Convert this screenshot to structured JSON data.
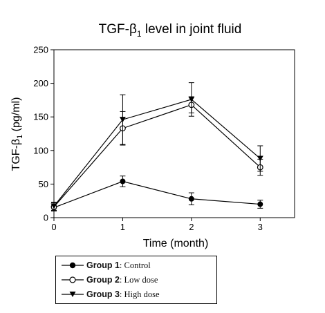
{
  "chart_data": {
    "type": "line",
    "title_main": "TGF-β",
    "title_sub": "1",
    "title_rest": " level in joint fluid",
    "ylabel_main": "TGF-β",
    "ylabel_sub": "1",
    "ylabel_rest": " (pg/ml)",
    "xlabel": "Time (month)",
    "x": [
      0,
      1,
      2,
      3
    ],
    "x_ticks": [
      "0",
      "1",
      "2",
      "3"
    ],
    "xlim": [
      0,
      3.5
    ],
    "ylim": [
      0,
      250
    ],
    "y_ticks": [
      "0",
      "50",
      "100",
      "150",
      "200",
      "250"
    ],
    "grid": false,
    "legend_position": "bottom-left",
    "series": [
      {
        "name": "Group 1",
        "desc": ": Control",
        "marker": "filled-circle",
        "values": [
          15,
          54,
          28,
          20
        ],
        "errors": [
          5,
          8,
          9,
          6
        ]
      },
      {
        "name": "Group 2",
        "desc": ": Low dose",
        "marker": "open-circle",
        "values": [
          16,
          133,
          168,
          75
        ],
        "errors": [
          6,
          25,
          12,
          12
        ]
      },
      {
        "name": "Group 3",
        "desc": ": High dose",
        "marker": "filled-triangle-down",
        "values": [
          17,
          146,
          176,
          88
        ],
        "errors": [
          6,
          37,
          25,
          19
        ]
      }
    ]
  }
}
